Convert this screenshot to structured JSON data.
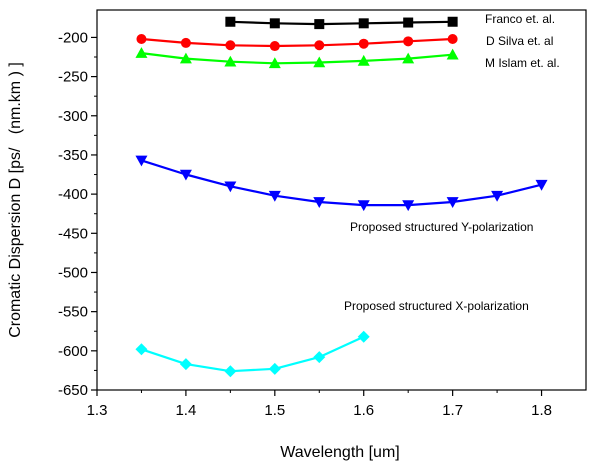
{
  "chart_data": {
    "type": "line",
    "title": "",
    "xlabel": "Wavelength [um]",
    "ylabel": "Cromatic Dispersion D [ps/   (nm.km ) ]",
    "xlim": [
      1.3,
      1.85
    ],
    "ylim": [
      -650,
      -165
    ],
    "xticks": [
      1.3,
      1.4,
      1.5,
      1.6,
      1.7,
      1.8
    ],
    "xtick_labels": [
      "1.3",
      "1.4",
      "1.5",
      "1.6",
      "1.7",
      "1.8"
    ],
    "yticks": [
      -200,
      -250,
      -300,
      -350,
      -400,
      -450,
      -500,
      -550,
      -600,
      -650
    ],
    "ytick_labels": [
      "-200",
      "-250",
      "-300",
      "-350",
      "-400",
      "-450",
      "-500",
      "-550",
      "-600",
      "-650"
    ],
    "grid": false,
    "series": [
      {
        "name": "Franco et. al.",
        "color": "#000000",
        "marker": "square",
        "x": [
          1.45,
          1.5,
          1.55,
          1.6,
          1.65,
          1.7
        ],
        "y": [
          -180,
          -182,
          -183,
          -182,
          -181,
          -180
        ]
      },
      {
        "name": "D Silva et. al",
        "color": "#ff0000",
        "marker": "circle",
        "x": [
          1.35,
          1.4,
          1.45,
          1.5,
          1.55,
          1.6,
          1.65,
          1.7
        ],
        "y": [
          -202,
          -207,
          -210,
          -211,
          -210,
          -208,
          -205,
          -202
        ]
      },
      {
        "name": "M Islam et. al.",
        "color": "#00ff00",
        "marker": "triangle-up",
        "x": [
          1.35,
          1.4,
          1.45,
          1.5,
          1.55,
          1.6,
          1.65,
          1.7
        ],
        "y": [
          -220,
          -227,
          -231,
          -233,
          -232,
          -230,
          -227,
          -222
        ]
      },
      {
        "name": "Proposed structured Y-polarization",
        "color": "#0000ff",
        "marker": "triangle-down",
        "x": [
          1.35,
          1.4,
          1.45,
          1.5,
          1.55,
          1.6,
          1.65,
          1.7,
          1.75,
          1.8
        ],
        "y": [
          -357,
          -375,
          -390,
          -402,
          -410,
          -414,
          -414,
          -410,
          -402,
          -388
        ]
      },
      {
        "name": "Proposed structured X-polarization",
        "color": "#00ffff",
        "marker": "diamond",
        "x": [
          1.35,
          1.4,
          1.45,
          1.5,
          1.55,
          1.6
        ],
        "y": [
          -598,
          -617,
          -626,
          -623,
          -608,
          -582
        ]
      }
    ]
  }
}
